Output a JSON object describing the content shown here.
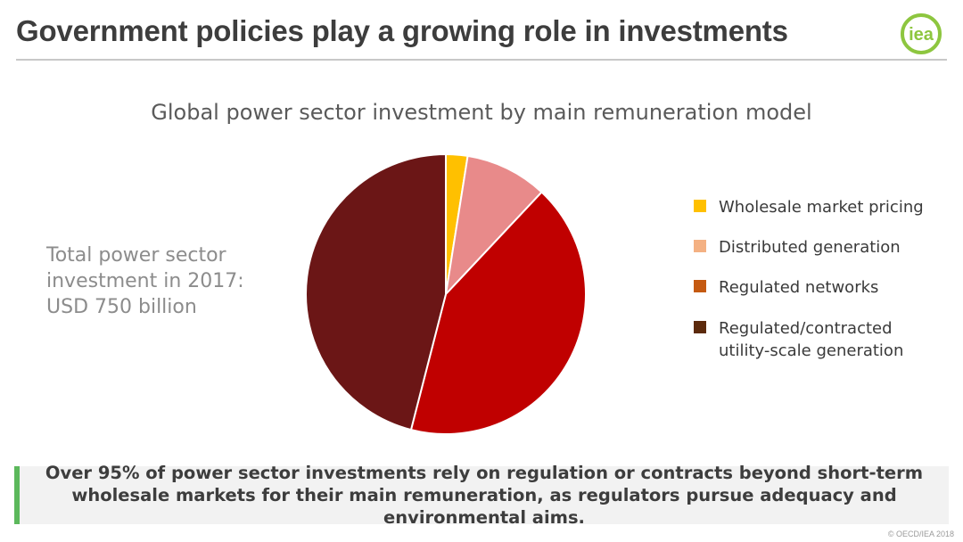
{
  "slide": {
    "title": "Government policies play a growing role in investments",
    "logo_text": "iea",
    "total_lines": [
      "Total power sector",
      "investment in 2017:",
      "USD 750 billion"
    ],
    "callout": "Over 95% of power sector investments rely on regulation or contracts beyond short-term wholesale markets for their main remuneration, as regulators pursue adequacy and environmental aims.",
    "copyright": "© OECD/IEA 2018"
  },
  "colors": {
    "accent_green": "#5cb85c",
    "logo_green": "#8dc63f"
  },
  "chart_data": {
    "type": "pie",
    "title": "Global power sector investment by main remuneration model",
    "start_angle_deg": 0,
    "direction": "clockwise",
    "slices": [
      {
        "label": "Wholesale market pricing",
        "value": 2.5,
        "color": "#ffc000",
        "legend_color": "#ffc000"
      },
      {
        "label": "Distributed generation",
        "value": 9.5,
        "color": "#e88a8a",
        "legend_color": "#f4b183"
      },
      {
        "label": "Regulated networks",
        "value": 42,
        "color": "#c00000",
        "legend_color": "#c55a11"
      },
      {
        "label": "Regulated/contracted utility-scale generation",
        "value": 46,
        "color": "#6b1616",
        "legend_color": "#5c2a0c"
      }
    ],
    "legend_lines": [
      [
        "Wholesale market pricing"
      ],
      [
        "Distributed generation"
      ],
      [
        "Regulated networks"
      ],
      [
        "Regulated/contracted",
        "utility-scale generation"
      ]
    ]
  }
}
